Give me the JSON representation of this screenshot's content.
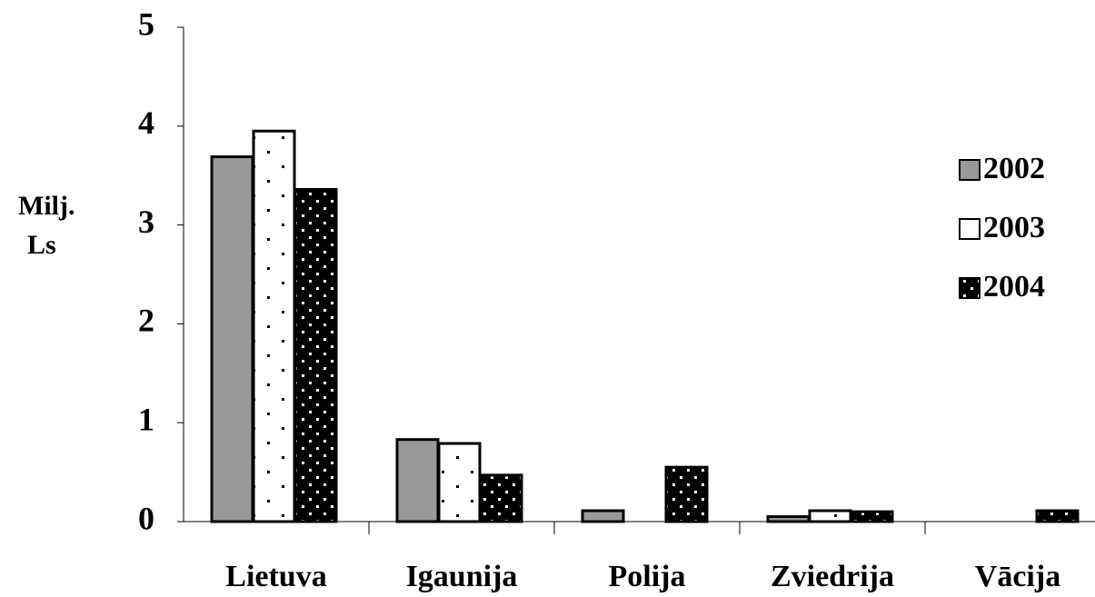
{
  "chart_data": {
    "type": "bar",
    "y_label": [
      "Milj.",
      "Ls"
    ],
    "categories": [
      "Lietuva",
      "Igaunija",
      "Polija",
      "Zviedrija",
      "Vācija"
    ],
    "series": [
      {
        "name": "2002",
        "color": "#999999",
        "values": [
          3.69,
          0.83,
          0.11,
          0.05,
          null
        ]
      },
      {
        "name": "2003",
        "color": "#ffffff",
        "values": [
          3.95,
          0.79,
          null,
          0.11,
          null
        ]
      },
      {
        "name": "2004",
        "color": "#000000",
        "values": [
          3.36,
          0.47,
          0.55,
          0.1,
          0.11
        ]
      }
    ],
    "ylim": [
      0,
      5
    ],
    "yticks": [
      0,
      1,
      2,
      3,
      4,
      5
    ],
    "grid": false,
    "legend": "right"
  }
}
